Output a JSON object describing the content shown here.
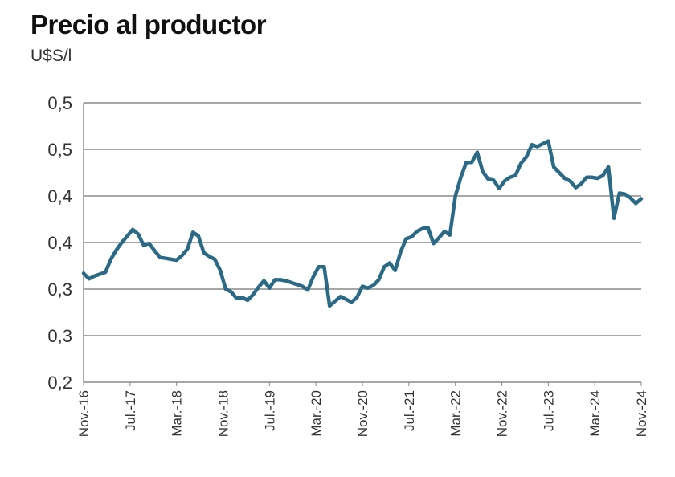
{
  "header": {
    "title": "Precio al productor",
    "unit": "U$S/l"
  },
  "chart_data": {
    "type": "line",
    "title": "Precio al productor",
    "ylabel": "U$S/l",
    "xlabel": "",
    "ylim": [
      0.2,
      0.5
    ],
    "grid": true,
    "yticks": [
      0.2,
      0.25,
      0.3,
      0.35,
      0.4,
      0.45,
      0.5
    ],
    "ytick_labels": [
      "0,2",
      "0,3",
      "0,3",
      "0,4",
      "0,4",
      "0,5",
      "0,5"
    ],
    "xtick_labels": [
      "Nov.-16",
      "Jul.-17",
      "Mar.-18",
      "Nov.-18",
      "Jul.-19",
      "Mar.-20",
      "Nov.-20",
      "Jul.-21",
      "Mar.-22",
      "Nov.-22",
      "Jul.-23",
      "Mar.-24",
      "Nov.-24"
    ],
    "x_start": "Nov.-16",
    "x_end": "Nov.-24",
    "line_color": "#2a6a86",
    "series": [
      {
        "values": [
          0.317,
          0.311,
          0.314,
          0.316,
          0.318,
          0.332,
          0.342,
          0.35,
          0.357,
          0.364,
          0.359,
          0.347,
          0.349,
          0.341,
          0.334,
          0.333,
          0.332,
          0.331,
          0.336,
          0.343,
          0.361,
          0.357,
          0.339,
          0.335,
          0.332,
          0.32,
          0.3,
          0.297,
          0.29,
          0.291,
          0.288,
          0.294,
          0.302,
          0.309,
          0.301,
          0.31,
          0.31,
          0.309,
          0.307,
          0.305,
          0.303,
          0.299,
          0.313,
          0.324,
          0.324,
          0.282,
          0.287,
          0.292,
          0.289,
          0.286,
          0.291,
          0.303,
          0.301,
          0.304,
          0.31,
          0.324,
          0.328,
          0.32,
          0.34,
          0.354,
          0.356,
          0.362,
          0.365,
          0.366,
          0.349,
          0.355,
          0.362,
          0.358,
          0.4,
          0.42,
          0.436,
          0.436,
          0.447,
          0.426,
          0.418,
          0.417,
          0.408,
          0.416,
          0.42,
          0.422,
          0.435,
          0.442,
          0.455,
          0.453,
          0.456,
          0.459,
          0.431,
          0.425,
          0.419,
          0.416,
          0.409,
          0.413,
          0.42,
          0.42,
          0.419,
          0.422,
          0.431,
          0.376,
          0.403,
          0.402,
          0.398,
          0.392,
          0.397
        ]
      }
    ]
  }
}
